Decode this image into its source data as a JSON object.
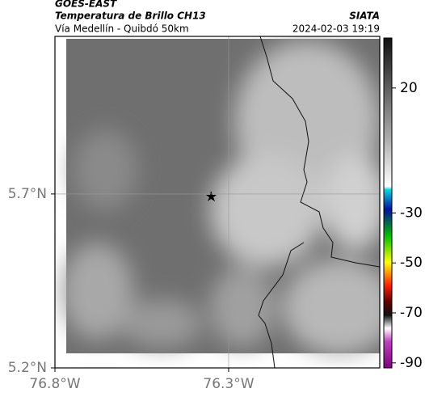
{
  "header": {
    "title": "GOES-EAST",
    "subtitle": "Temperatura de Brillo CH13",
    "source": "SIATA",
    "region": "Vía Medellín - Quibdó 50km",
    "timestamp": "2024-02-03 19:19"
  },
  "map": {
    "xlim": [
      -76.8,
      -75.865
    ],
    "ylim": [
      5.2,
      6.153
    ],
    "xticks": [
      {
        "value": -76.8,
        "label": "76.8°W"
      },
      {
        "value": -76.3,
        "label": "76.3°W"
      }
    ],
    "yticks": [
      {
        "value": 5.2,
        "label": "5.2°N"
      },
      {
        "value": 5.7,
        "label": "5.7°N"
      }
    ],
    "grid": true
  },
  "colorbar": {
    "lim": [
      -92,
      40
    ],
    "ticks": [
      20,
      -30,
      -50,
      -70,
      -90
    ]
  }
}
